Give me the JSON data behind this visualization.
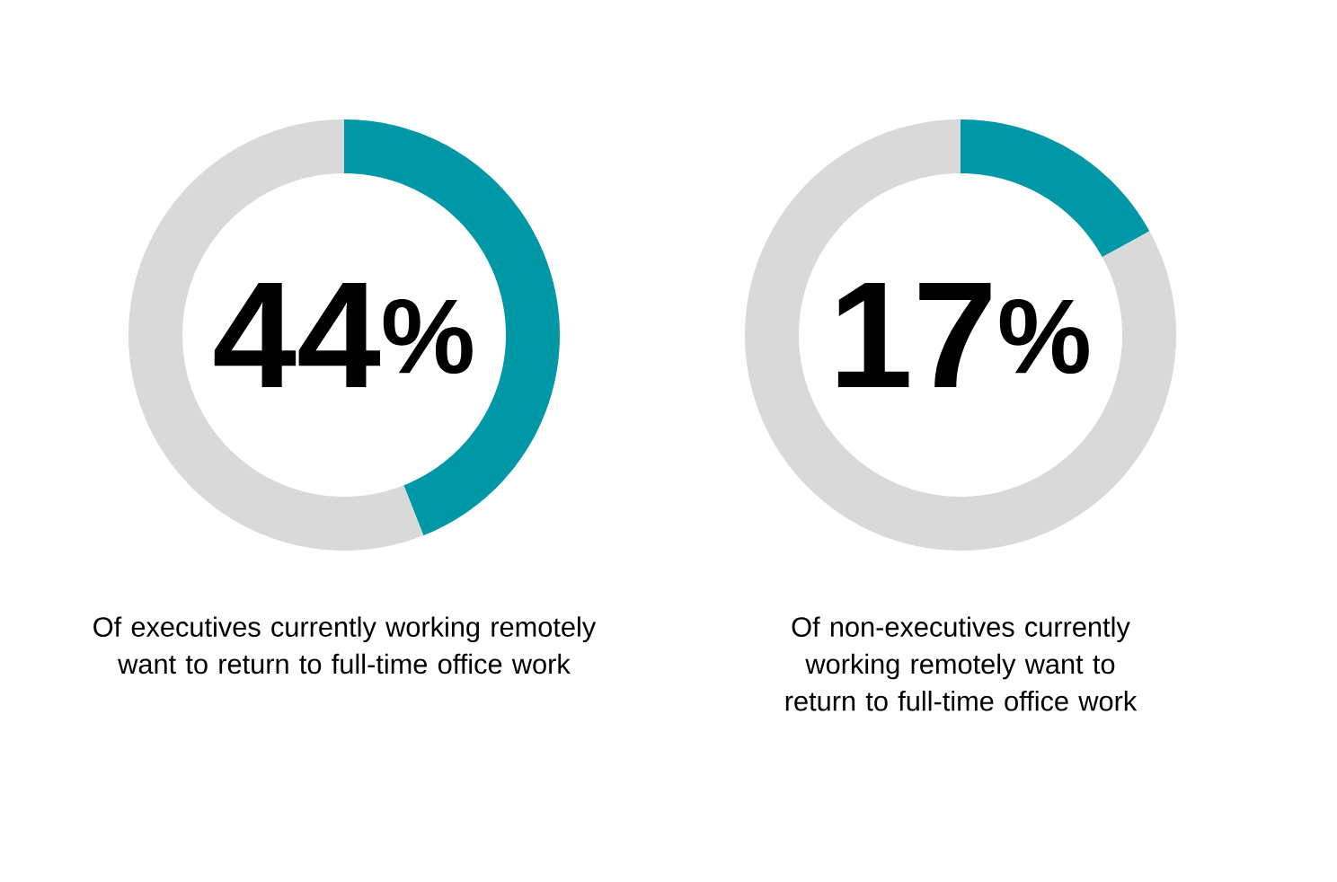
{
  "chart_data": [
    {
      "type": "donut",
      "categories": [
        null,
        null
      ],
      "values": [
        44,
        56
      ],
      "colors": [
        "#0097a7",
        "#d9d9d9"
      ],
      "annotations": [
        "44$^{%}$",
        "Of executives currently working remotely want to return to full-time office work"
      ]
    },
    {
      "type": "donut",
      "categories": [
        null,
        null
      ],
      "values": [
        17,
        83
      ],
      "colors": [
        "#0097a7",
        "#d9d9d9"
      ],
      "annotations": [
        "17$^{%}$",
        "Of non-executives currently working remotely want to return to full-time office work"
      ]
    }
  ]
}
